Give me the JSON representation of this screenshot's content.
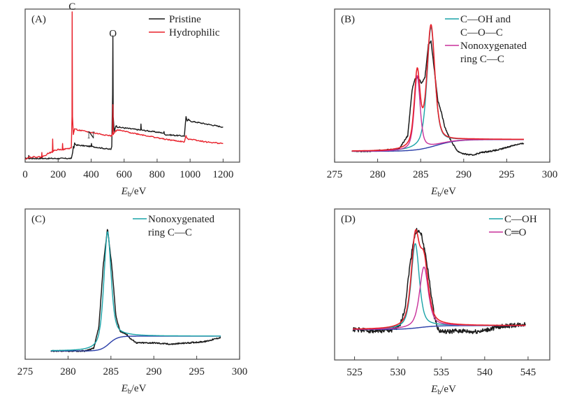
{
  "chart_data": [
    {
      "id": "A",
      "type": "line",
      "panel_label": "(A)",
      "xlabel_main": "E",
      "xlabel_sub": "b",
      "xlabel_unit": "/eV",
      "xlim": [
        0,
        1300
      ],
      "ylim": [
        0,
        1
      ],
      "xticks": [
        0,
        200,
        400,
        600,
        800,
        1000,
        1200
      ],
      "xtick_labels": [
        "0",
        "200",
        "400",
        "600",
        "800",
        "1000",
        "1200"
      ],
      "legend": [
        {
          "label": "Pristine",
          "color": "#1a1a1a"
        },
        {
          "label": "Hydrophilic",
          "color": "#e8202a"
        }
      ],
      "legend_position": "top-right",
      "annotations": [
        {
          "text": "C",
          "x": 285,
          "y": 1.0
        },
        {
          "text": "O",
          "x": 532,
          "y": 0.82
        },
        {
          "text": "N",
          "x": 400,
          "y": 0.14
        }
      ],
      "series": [
        {
          "name": "Pristine",
          "color": "#1a1a1a",
          "points": [
            [
              0,
              0.02
            ],
            [
              20,
              0.02
            ],
            [
              22,
              0.04
            ],
            [
              24,
              0.02
            ],
            [
              100,
              0.02
            ],
            [
              102,
              0.03
            ],
            [
              104,
              0.02
            ],
            [
              280,
              0.02
            ],
            [
              288,
              0.06
            ],
            [
              292,
              0.1
            ],
            [
              296,
              0.09
            ],
            [
              300,
              0.12
            ],
            [
              310,
              0.11
            ],
            [
              400,
              0.1
            ],
            [
              402,
              0.12
            ],
            [
              404,
              0.1
            ],
            [
              520,
              0.08
            ],
            [
              525,
              0.1
            ],
            [
              530,
              0.45
            ],
            [
              532,
              0.84
            ],
            [
              534,
              0.3
            ],
            [
              540,
              0.2
            ],
            [
              550,
              0.24
            ],
            [
              560,
              0.23
            ],
            [
              700,
              0.21
            ],
            [
              702,
              0.25
            ],
            [
              704,
              0.21
            ],
            [
              840,
              0.19
            ],
            [
              842,
              0.2
            ],
            [
              844,
              0.18
            ],
            [
              965,
              0.17
            ],
            [
              975,
              0.3
            ],
            [
              982,
              0.27
            ],
            [
              990,
              0.28
            ],
            [
              1000,
              0.27
            ],
            [
              1100,
              0.25
            ],
            [
              1200,
              0.23
            ]
          ]
        },
        {
          "name": "Hydrophilic",
          "color": "#e8202a",
          "points": [
            [
              0,
              0.02
            ],
            [
              10,
              0.02
            ],
            [
              25,
              0.03
            ],
            [
              100,
              0.03
            ],
            [
              101,
              0.06
            ],
            [
              103,
              0.03
            ],
            [
              150,
              0.06
            ],
            [
              165,
              0.06
            ],
            [
              167,
              0.15
            ],
            [
              169,
              0.07
            ],
            [
              200,
              0.08
            ],
            [
              225,
              0.08
            ],
            [
              227,
              0.12
            ],
            [
              229,
              0.08
            ],
            [
              280,
              0.09
            ],
            [
              284,
              0.3
            ],
            [
              285,
              1.0
            ],
            [
              287,
              0.3
            ],
            [
              292,
              0.18
            ],
            [
              300,
              0.22
            ],
            [
              320,
              0.21
            ],
            [
              420,
              0.19
            ],
            [
              525,
              0.17
            ],
            [
              530,
              0.2
            ],
            [
              532,
              0.38
            ],
            [
              534,
              0.18
            ],
            [
              545,
              0.2
            ],
            [
              560,
              0.21
            ],
            [
              700,
              0.18
            ],
            [
              840,
              0.15
            ],
            [
              965,
              0.13
            ],
            [
              975,
              0.17
            ],
            [
              985,
              0.15
            ],
            [
              1000,
              0.15
            ],
            [
              1100,
              0.13
            ],
            [
              1200,
              0.12
            ]
          ]
        }
      ]
    },
    {
      "id": "B",
      "type": "line",
      "panel_label": "(B)",
      "xlabel_main": "E",
      "xlabel_sub": "b",
      "xlabel_unit": "/eV",
      "xlim": [
        275,
        300
      ],
      "ylim": [
        0,
        1
      ],
      "xticks": [
        275,
        280,
        285,
        290,
        295,
        300
      ],
      "xtick_labels": [
        "275",
        "280",
        "285",
        "290",
        "295",
        "300"
      ],
      "legend": [
        {
          "label_lines": [
            "C—OH and",
            "C—O—C"
          ],
          "color": "#1aa3a8"
        },
        {
          "label_lines": [
            "Nonoxygenated",
            "ring C—C"
          ],
          "color": "#c8309a"
        }
      ],
      "legend_position": "top-right",
      "x_range": [
        277,
        297
      ],
      "background": {
        "color": "#2a3ea8",
        "start": 0.03,
        "end": 0.12,
        "center": 286.8,
        "width": 1.2
      },
      "components": [
        {
          "name": "C—OH and C—O—C",
          "color": "#1aa3a8",
          "center": 286.2,
          "height": 0.92,
          "width": 0.55
        },
        {
          "name": "Nonoxygenated ring C—C",
          "color": "#c8309a",
          "center": 284.6,
          "height": 0.57,
          "width": 0.4
        }
      ],
      "envelope_color": "#e8202a",
      "measured": {
        "color": "#1a1a1a",
        "points": [
          [
            277,
            0.03
          ],
          [
            279,
            0.03
          ],
          [
            281,
            0.04
          ],
          [
            282.5,
            0.05
          ],
          [
            283.5,
            0.15
          ],
          [
            284,
            0.5
          ],
          [
            284.3,
            0.58
          ],
          [
            284.7,
            0.6
          ],
          [
            285.1,
            0.55
          ],
          [
            285.5,
            0.6
          ],
          [
            285.9,
            0.85
          ],
          [
            286.2,
            0.88
          ],
          [
            286.6,
            0.65
          ],
          [
            287,
            0.42
          ],
          [
            287.4,
            0.33
          ],
          [
            287.8,
            0.22
          ],
          [
            288.3,
            0.14
          ],
          [
            288.8,
            0.08
          ],
          [
            289.3,
            0.03
          ],
          [
            290,
            0.01
          ],
          [
            291,
            0.0
          ],
          [
            292,
            0.02
          ],
          [
            293,
            0.03
          ],
          [
            294,
            0.04
          ],
          [
            295,
            0.06
          ],
          [
            296,
            0.08
          ],
          [
            297,
            0.09
          ]
        ]
      }
    },
    {
      "id": "C",
      "type": "line",
      "panel_label": "(C)",
      "xlabel_main": "E",
      "xlabel_sub": "b",
      "xlabel_unit": "/eV",
      "xlim": [
        275,
        300
      ],
      "ylim": [
        0,
        1
      ],
      "xticks": [
        275,
        280,
        285,
        290,
        295,
        300
      ],
      "xtick_labels": [
        "275",
        "280",
        "285",
        "290",
        "295",
        "300"
      ],
      "legend": [
        {
          "label_lines": [
            "Nonoxygenated",
            "ring C—C"
          ],
          "color": "#1aa3a8"
        }
      ],
      "legend_position": "top-right",
      "x_range": [
        278,
        297.8
      ],
      "background": {
        "color": "#2a3ea8",
        "start": 0.02,
        "end": 0.13,
        "center": 284.8,
        "width": 0.5
      },
      "components": [
        {
          "name": "Nonoxygenated ring C—C",
          "color": "#1aa3a8",
          "center": 284.6,
          "height": 0.84,
          "width": 0.5
        }
      ],
      "envelope_color": null,
      "measured": {
        "color": "#1a1a1a",
        "points": [
          [
            278,
            0.02
          ],
          [
            280,
            0.02
          ],
          [
            282,
            0.02
          ],
          [
            283,
            0.04
          ],
          [
            283.6,
            0.2
          ],
          [
            284.1,
            0.65
          ],
          [
            284.6,
            0.93
          ],
          [
            285.1,
            0.65
          ],
          [
            285.6,
            0.27
          ],
          [
            286.1,
            0.16
          ],
          [
            286.7,
            0.15
          ],
          [
            287.3,
            0.11
          ],
          [
            288,
            0.08
          ],
          [
            290,
            0.08
          ],
          [
            292,
            0.07
          ],
          [
            294,
            0.08
          ],
          [
            296,
            0.09
          ],
          [
            297.8,
            0.12
          ]
        ]
      }
    },
    {
      "id": "D",
      "type": "line",
      "panel_label": "(D)",
      "xlabel_main": "E",
      "xlabel_sub": "b",
      "xlabel_unit": "/eV",
      "xlim": [
        522.7,
        547.5
      ],
      "ylim": [
        0,
        1
      ],
      "xticks": [
        525,
        530,
        535,
        540,
        545
      ],
      "xtick_labels": [
        "525",
        "530",
        "535",
        "540",
        "545"
      ],
      "legend": [
        {
          "label_lines": [
            "C—OH"
          ],
          "color": "#1aa3a8"
        },
        {
          "label_lines": [
            "C═O"
          ],
          "color": "#c8309a"
        }
      ],
      "legend_position": "top-right",
      "x_range": [
        524.8,
        544.7
      ],
      "background": {
        "color": "#2a3ea8",
        "start": 0.14,
        "end": 0.17,
        "center": 532.5,
        "width": 1.0
      },
      "components": [
        {
          "name": "C—OH",
          "color": "#1aa3a8",
          "center": 532.0,
          "height": 0.66,
          "width": 0.55
        },
        {
          "name": "C═O",
          "color": "#c8309a",
          "center": 533.0,
          "height": 0.47,
          "width": 0.6
        }
      ],
      "envelope_color": "#e8202a",
      "measured": {
        "color": "#1a1a1a",
        "noisy": true,
        "points": [
          [
            524.8,
            0.14
          ],
          [
            527,
            0.13
          ],
          [
            529,
            0.13
          ],
          [
            530.2,
            0.16
          ],
          [
            530.8,
            0.3
          ],
          [
            531.3,
            0.6
          ],
          [
            531.8,
            0.84
          ],
          [
            532.2,
            0.92
          ],
          [
            532.7,
            0.88
          ],
          [
            533.2,
            0.72
          ],
          [
            533.7,
            0.48
          ],
          [
            534.2,
            0.24
          ],
          [
            534.7,
            0.13
          ],
          [
            535.5,
            0.12
          ],
          [
            537,
            0.13
          ],
          [
            538.5,
            0.12
          ],
          [
            540,
            0.13
          ],
          [
            541.5,
            0.16
          ],
          [
            543,
            0.17
          ],
          [
            544.7,
            0.18
          ]
        ]
      }
    }
  ]
}
